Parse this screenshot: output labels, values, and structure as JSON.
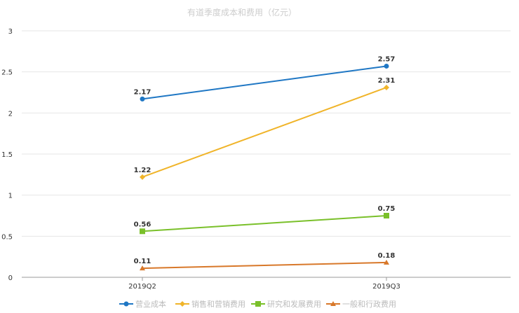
{
  "chart_data": {
    "type": "line",
    "title": "有道季度成本和费用（亿元）",
    "xlabel": "",
    "ylabel": "",
    "categories": [
      "2019Q2",
      "2019Q3"
    ],
    "ylim": [
      0,
      3
    ],
    "yticks": [
      "0",
      "0.5",
      "1",
      "1.5",
      "2",
      "2.5",
      "3"
    ],
    "grid": "horizontal",
    "legend_position": "bottom",
    "series": [
      {
        "name": "营业成本",
        "values": [
          2.17,
          2.57
        ],
        "labels": [
          "2.17",
          "2.57"
        ],
        "color": "#1f77c4",
        "marker": "circle"
      },
      {
        "name": "销售和营销费用",
        "values": [
          1.22,
          2.31
        ],
        "labels": [
          "1.22",
          "2.31"
        ],
        "color": "#f0b429",
        "marker": "diamond"
      },
      {
        "name": "研究和发展费用",
        "values": [
          0.56,
          0.75
        ],
        "labels": [
          "0.56",
          "0.75"
        ],
        "color": "#7ac02a",
        "marker": "square"
      },
      {
        "name": "一般和行政费用",
        "values": [
          0.11,
          0.18
        ],
        "labels": [
          "0.11",
          "0.18"
        ],
        "color": "#d8782a",
        "marker": "triangle"
      }
    ]
  }
}
